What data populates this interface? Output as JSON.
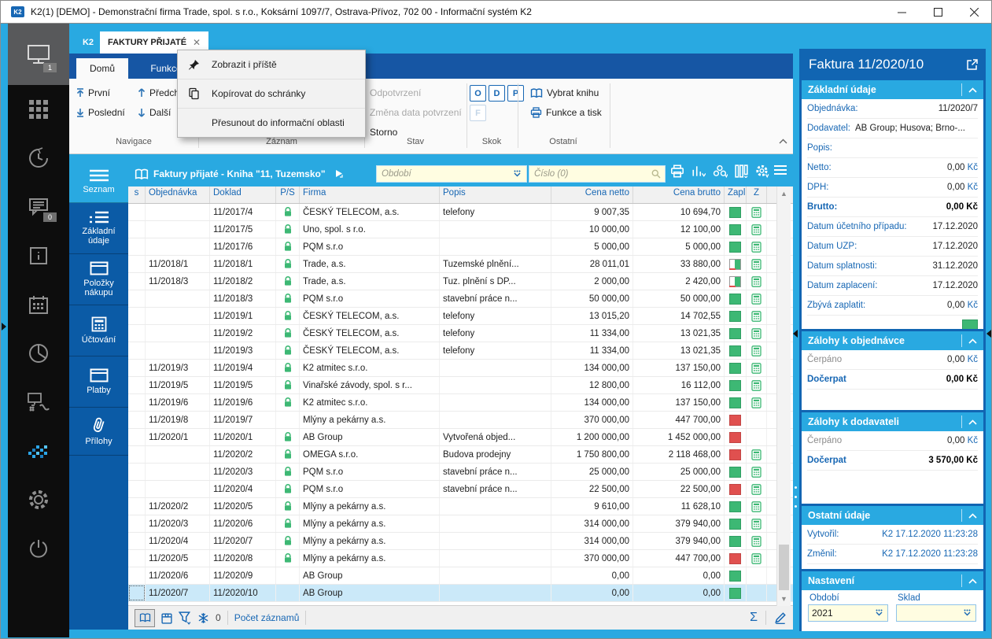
{
  "window": {
    "title": "K2(1) [DEMO] - Demonstrační firma Trade, spol. s r.o., Koksární 1097/7, Ostrava-Přívoz, 702 00 - Informační systém K2"
  },
  "colors": {
    "accent_cyan": "#29A9E1",
    "panel_blue": "#1165B2",
    "nav_blue": "#0B5BA6",
    "link_blue": "#1767B4",
    "paid_green": "#3DB874",
    "unpaid_red": "#E0504F",
    "selection": "#CBE9F9",
    "input_bg": "#FFFDE1"
  },
  "tabs": {
    "home": "K2",
    "active": "FAKTURY PŘIJATÉ"
  },
  "sidebar": {
    "workspace_badge": "1",
    "messages_badge": "0"
  },
  "ribbon": {
    "tabs": {
      "home": "Domů",
      "functions": "Funkce"
    },
    "groups": {
      "navigace": "Navigace",
      "zaznam": "Záznam",
      "stav": "Stav",
      "skok": "Skok",
      "ostatni": "Ostatní"
    },
    "nav": {
      "first": "První",
      "prev": "Předchozí",
      "last": "Poslední",
      "next": "Další"
    },
    "stav": {
      "unconfirm": "Odpotvrzení",
      "change_date": "Změna data potvrzení",
      "storno": "Storno"
    },
    "skok": {
      "o": "O",
      "d": "D",
      "p": "P",
      "f": "F"
    },
    "ostatni": {
      "select_book": "Vybrat knihu",
      "func_print": "Funkce a tisk"
    }
  },
  "context_menu": {
    "items": [
      "Zobrazit i příště",
      "Kopírovat do schránky",
      "Přesunout do informační oblasti"
    ]
  },
  "nav_panel": {
    "items": [
      "Seznam",
      "Základní údaje",
      "Položky nákupu",
      "Účtování",
      "Platby",
      "Přílohy"
    ],
    "active": "Seznam"
  },
  "table": {
    "title": "Faktury přijaté - Kniha \"11, Tuzemsko\"",
    "filters": {
      "period_placeholder": "Období",
      "number_placeholder": "Číslo (0)"
    },
    "columns": [
      "s",
      "Objednávka",
      "Doklad",
      "P/S",
      "Firma",
      "Popis",
      "Cena netto",
      "Cena brutto",
      "Zapl.",
      "Z"
    ],
    "rows": [
      {
        "o": "",
        "d": "11/2017/4",
        "l": 1,
        "f": "ČESKÝ TELECOM, a.s.",
        "p": "telefony",
        "n": "9 007,35",
        "b": "10 694,70",
        "z": "g",
        "c": 1
      },
      {
        "o": "",
        "d": "11/2017/5",
        "l": 1,
        "f": "Uno, spol. s r.o.",
        "p": "",
        "n": "10 000,00",
        "b": "12 100,00",
        "z": "g",
        "c": 1
      },
      {
        "o": "",
        "d": "11/2017/6",
        "l": 1,
        "f": "PQM s.r.o",
        "p": "",
        "n": "5 000,00",
        "b": "5 000,00",
        "z": "g",
        "c": 1
      },
      {
        "o": "11/2018/1",
        "d": "11/2018/1",
        "l": 1,
        "f": "Trade, a.s.",
        "p": "Tuzemské plnění...",
        "n": "28 011,01",
        "b": "33 880,00",
        "z": "p",
        "c": 1
      },
      {
        "o": "11/2018/3",
        "d": "11/2018/2",
        "l": 1,
        "f": "Trade, a.s.",
        "p": "Tuz. plnění s DP...",
        "n": "2 000,00",
        "b": "2 420,00",
        "z": "p",
        "c": 1
      },
      {
        "o": "",
        "d": "11/2018/3",
        "l": 1,
        "f": "PQM s.r.o",
        "p": "stavební práce n...",
        "n": "50 000,00",
        "b": "50 000,00",
        "z": "g",
        "c": 1
      },
      {
        "o": "",
        "d": "11/2019/1",
        "l": 1,
        "f": "ČESKÝ TELECOM, a.s.",
        "p": "telefony",
        "n": "13 015,20",
        "b": "14 702,55",
        "z": "g",
        "c": 1
      },
      {
        "o": "",
        "d": "11/2019/2",
        "l": 1,
        "f": "ČESKÝ TELECOM, a.s.",
        "p": "telefony",
        "n": "11 334,00",
        "b": "13 021,35",
        "z": "g",
        "c": 1
      },
      {
        "o": "",
        "d": "11/2019/3",
        "l": 1,
        "f": "ČESKÝ TELECOM, a.s.",
        "p": "telefony",
        "n": "11 334,00",
        "b": "13 021,35",
        "z": "g",
        "c": 1
      },
      {
        "o": "11/2019/3",
        "d": "11/2019/4",
        "l": 1,
        "f": "K2 atmitec s.r.o.",
        "p": "",
        "n": "134 000,00",
        "b": "137 150,00",
        "z": "g",
        "c": 1
      },
      {
        "o": "11/2019/5",
        "d": "11/2019/5",
        "l": 1,
        "f": "Vinařské závody, spol. s r...",
        "p": "",
        "n": "12 800,00",
        "b": "16 112,00",
        "z": "g",
        "c": 1
      },
      {
        "o": "11/2019/6",
        "d": "11/2019/6",
        "l": 1,
        "f": "K2 atmitec s.r.o.",
        "p": "",
        "n": "134 000,00",
        "b": "137 150,00",
        "z": "g",
        "c": 1
      },
      {
        "o": "11/2019/8",
        "d": "11/2019/7",
        "l": 0,
        "f": "Mlýny a pekárny a.s.",
        "p": "",
        "n": "370 000,00",
        "b": "447 700,00",
        "z": "r",
        "c": 0
      },
      {
        "o": "11/2020/1",
        "d": "11/2020/1",
        "l": 1,
        "f": "AB Group",
        "p": "Vytvořená objed...",
        "n": "1 200 000,00",
        "b": "1 452 000,00",
        "z": "r",
        "c": 0
      },
      {
        "o": "",
        "d": "11/2020/2",
        "l": 1,
        "f": "OMEGA s.r.o.",
        "p": "Budova prodejny",
        "n": "1 750 800,00",
        "b": "2 118 468,00",
        "z": "r",
        "c": 1
      },
      {
        "o": "",
        "d": "11/2020/3",
        "l": 1,
        "f": "PQM s.r.o",
        "p": "stavební práce n...",
        "n": "25 000,00",
        "b": "25 000,00",
        "z": "g",
        "c": 1
      },
      {
        "o": "",
        "d": "11/2020/4",
        "l": 1,
        "f": "PQM s.r.o",
        "p": "stavební práce n...",
        "n": "22 500,00",
        "b": "22 500,00",
        "z": "r",
        "c": 1
      },
      {
        "o": "11/2020/2",
        "d": "11/2020/5",
        "l": 1,
        "f": "Mlýny a pekárny a.s.",
        "p": "",
        "n": "9 610,00",
        "b": "11 628,10",
        "z": "g",
        "c": 1
      },
      {
        "o": "11/2020/3",
        "d": "11/2020/6",
        "l": 1,
        "f": "Mlýny a pekárny a.s.",
        "p": "",
        "n": "314 000,00",
        "b": "379 940,00",
        "z": "g",
        "c": 1
      },
      {
        "o": "11/2020/4",
        "d": "11/2020/7",
        "l": 1,
        "f": "Mlýny a pekárny a.s.",
        "p": "",
        "n": "314 000,00",
        "b": "379 940,00",
        "z": "g",
        "c": 1
      },
      {
        "o": "11/2020/5",
        "d": "11/2020/8",
        "l": 1,
        "f": "Mlýny a pekárny a.s.",
        "p": "",
        "n": "370 000,00",
        "b": "447 700,00",
        "z": "r",
        "c": 1
      },
      {
        "o": "11/2020/6",
        "d": "11/2020/9",
        "l": 0,
        "f": "AB Group",
        "p": "",
        "n": "0,00",
        "b": "0,00",
        "z": "g",
        "c": 0
      },
      {
        "o": "11/2020/7",
        "d": "11/2020/10",
        "l": 0,
        "f": "AB Group",
        "p": "",
        "n": "0,00",
        "b": "0,00",
        "z": "g",
        "c": 0,
        "sel": 1
      }
    ],
    "status": {
      "freeze_count": "0",
      "records_label": "Počet záznamů",
      "sum_symbol": "Σ"
    }
  },
  "detail": {
    "title": "Faktura 11/2020/10",
    "sections": {
      "zakladni": {
        "title": "Základní údaje",
        "rows": [
          {
            "label": "Objednávka:",
            "value": "11/2020/7"
          },
          {
            "label": "Dodavatel:",
            "value": "AB Group; Husova; Brno-...",
            "left": true
          },
          {
            "label": "Popis:",
            "value": ""
          },
          {
            "label": "Netto:",
            "value": "0,00",
            "kc": true
          },
          {
            "label": "DPH:",
            "value": "0,00",
            "kc": true
          },
          {
            "label": "Brutto:",
            "value": "0,00",
            "kc": true,
            "bold": true
          },
          {
            "label": "Datum účetního případu:",
            "value": "17.12.2020"
          },
          {
            "label": "Datum UZP:",
            "value": "17.12.2020"
          },
          {
            "label": "Datum splatnosti:",
            "value": "31.12.2020"
          },
          {
            "label": "Datum zaplacení:",
            "value": "17.12.2020"
          },
          {
            "label": "Zbývá zaplatit:",
            "value": "0,00",
            "kc": true
          }
        ]
      },
      "zalohy_obj": {
        "title": "Zálohy k objednávce",
        "rows": [
          {
            "label": "Čerpáno",
            "value": "0,00",
            "kc": true,
            "muted": true
          },
          {
            "label": "Dočerpat",
            "value": "0,00",
            "kc": true,
            "bold": true
          }
        ]
      },
      "zalohy_dod": {
        "title": "Zálohy k dodavateli",
        "rows": [
          {
            "label": "Čerpáno",
            "value": "0,00",
            "kc": true,
            "muted": true
          },
          {
            "label": "Dočerpat",
            "value": "3 570,00",
            "kc": true,
            "bold": true
          }
        ]
      },
      "ostatni": {
        "title": "Ostatní údaje",
        "rows": [
          {
            "label": "Vytvořil:",
            "value": "K2 17.12.2020 11:23:28",
            "link": true
          },
          {
            "label": "Změnil:",
            "value": "K2 17.12.2020 11:23:28",
            "link": true
          }
        ]
      },
      "nastaveni": {
        "title": "Nastavení",
        "fields": [
          {
            "label": "Období",
            "value": "2021"
          },
          {
            "label": "Sklad",
            "value": ""
          }
        ]
      }
    }
  }
}
